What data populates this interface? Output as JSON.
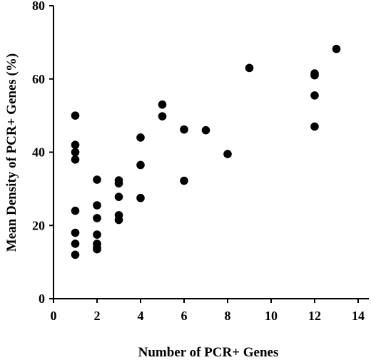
{
  "chart_data": {
    "type": "scatter",
    "title": "",
    "xlabel": "Number of PCR+ Genes",
    "ylabel": "Mean Density of PCR+ Genes (%)",
    "xlim": [
      0,
      14
    ],
    "ylim": [
      0,
      80
    ],
    "xticks": [
      0,
      2,
      4,
      6,
      8,
      10,
      12,
      14
    ],
    "yticks": [
      0,
      20,
      40,
      60,
      80
    ],
    "grid": false,
    "marker_color": "#000000",
    "points": [
      {
        "x": 1,
        "y": 50
      },
      {
        "x": 1,
        "y": 42
      },
      {
        "x": 1,
        "y": 40
      },
      {
        "x": 1,
        "y": 38
      },
      {
        "x": 1,
        "y": 24
      },
      {
        "x": 1,
        "y": 18
      },
      {
        "x": 1,
        "y": 15
      },
      {
        "x": 1,
        "y": 12
      },
      {
        "x": 2,
        "y": 32.5
      },
      {
        "x": 2,
        "y": 25.5
      },
      {
        "x": 2,
        "y": 22
      },
      {
        "x": 2,
        "y": 17.5
      },
      {
        "x": 2,
        "y": 15
      },
      {
        "x": 2,
        "y": 14
      },
      {
        "x": 2,
        "y": 13.5
      },
      {
        "x": 3,
        "y": 32.3
      },
      {
        "x": 3,
        "y": 31.5
      },
      {
        "x": 3,
        "y": 27.8
      },
      {
        "x": 3,
        "y": 22.8
      },
      {
        "x": 3,
        "y": 21.5
      },
      {
        "x": 4,
        "y": 44
      },
      {
        "x": 4,
        "y": 36.5
      },
      {
        "x": 4,
        "y": 27.5
      },
      {
        "x": 5,
        "y": 53
      },
      {
        "x": 5,
        "y": 49.8
      },
      {
        "x": 6,
        "y": 46.2
      },
      {
        "x": 6,
        "y": 32.2
      },
      {
        "x": 7,
        "y": 46
      },
      {
        "x": 8,
        "y": 39.5
      },
      {
        "x": 9,
        "y": 63
      },
      {
        "x": 12,
        "y": 61.5
      },
      {
        "x": 12,
        "y": 61
      },
      {
        "x": 12,
        "y": 55.5
      },
      {
        "x": 12,
        "y": 47
      },
      {
        "x": 13,
        "y": 68.2
      }
    ]
  }
}
